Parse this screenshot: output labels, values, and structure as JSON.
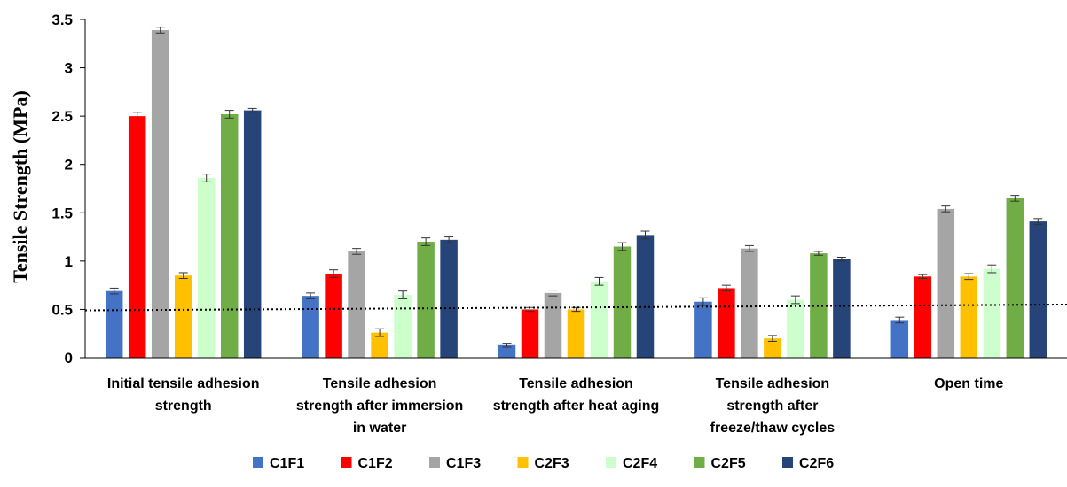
{
  "chart_data": {
    "type": "bar",
    "title": "",
    "xlabel": "",
    "ylabel": "Tensile Strength (MPa)",
    "ylim": [
      0,
      3.5
    ],
    "yticks": [
      "0",
      "0.5",
      "1",
      "1.5",
      "2",
      "2.5",
      "3",
      "3.5"
    ],
    "categories": [
      [
        "Initial tensile adhesion",
        "strength"
      ],
      [
        "Tensile adhesion",
        "strength after immersion",
        "in water"
      ],
      [
        "Tensile adhesion",
        "strength after heat aging"
      ],
      [
        "Tensile adhesion",
        "strength after",
        "freeze/thaw cycles"
      ],
      [
        "Open time"
      ]
    ],
    "series": [
      {
        "name": "C1F1",
        "color": "#4472c4",
        "values": [
          0.69,
          0.64,
          0.13,
          0.58,
          0.39
        ],
        "errors": [
          0.03,
          0.03,
          0.02,
          0.04,
          0.03
        ]
      },
      {
        "name": "C1F2",
        "color": "#ff0000",
        "values": [
          2.5,
          0.87,
          0.5,
          0.72,
          0.84
        ],
        "errors": [
          0.04,
          0.04,
          0.02,
          0.03,
          0.02
        ]
      },
      {
        "name": "C1F3",
        "color": "#a5a5a5",
        "values": [
          3.39,
          1.1,
          0.67,
          1.13,
          1.54
        ],
        "errors": [
          0.03,
          0.03,
          0.03,
          0.03,
          0.03
        ]
      },
      {
        "name": "C2F3",
        "color": "#ffc000",
        "values": [
          0.85,
          0.26,
          0.5,
          0.2,
          0.84
        ],
        "errors": [
          0.03,
          0.04,
          0.02,
          0.03,
          0.03
        ]
      },
      {
        "name": "C2F4",
        "color": "#ccffcc",
        "values": [
          1.86,
          0.65,
          0.79,
          0.6,
          0.92
        ],
        "errors": [
          0.04,
          0.04,
          0.04,
          0.04,
          0.04
        ]
      },
      {
        "name": "C2F5",
        "color": "#70ad47",
        "values": [
          2.52,
          1.2,
          1.15,
          1.08,
          1.65
        ],
        "errors": [
          0.04,
          0.04,
          0.04,
          0.02,
          0.03
        ]
      },
      {
        "name": "C2F6",
        "color": "#264478",
        "values": [
          2.56,
          1.22,
          1.27,
          1.02,
          1.41
        ],
        "errors": [
          0.02,
          0.03,
          0.04,
          0.02,
          0.03
        ]
      }
    ],
    "trendline": {
      "style": "dotted",
      "y_start": 0.49,
      "y_end": 0.55
    },
    "grid": false,
    "legend": "bottom"
  }
}
